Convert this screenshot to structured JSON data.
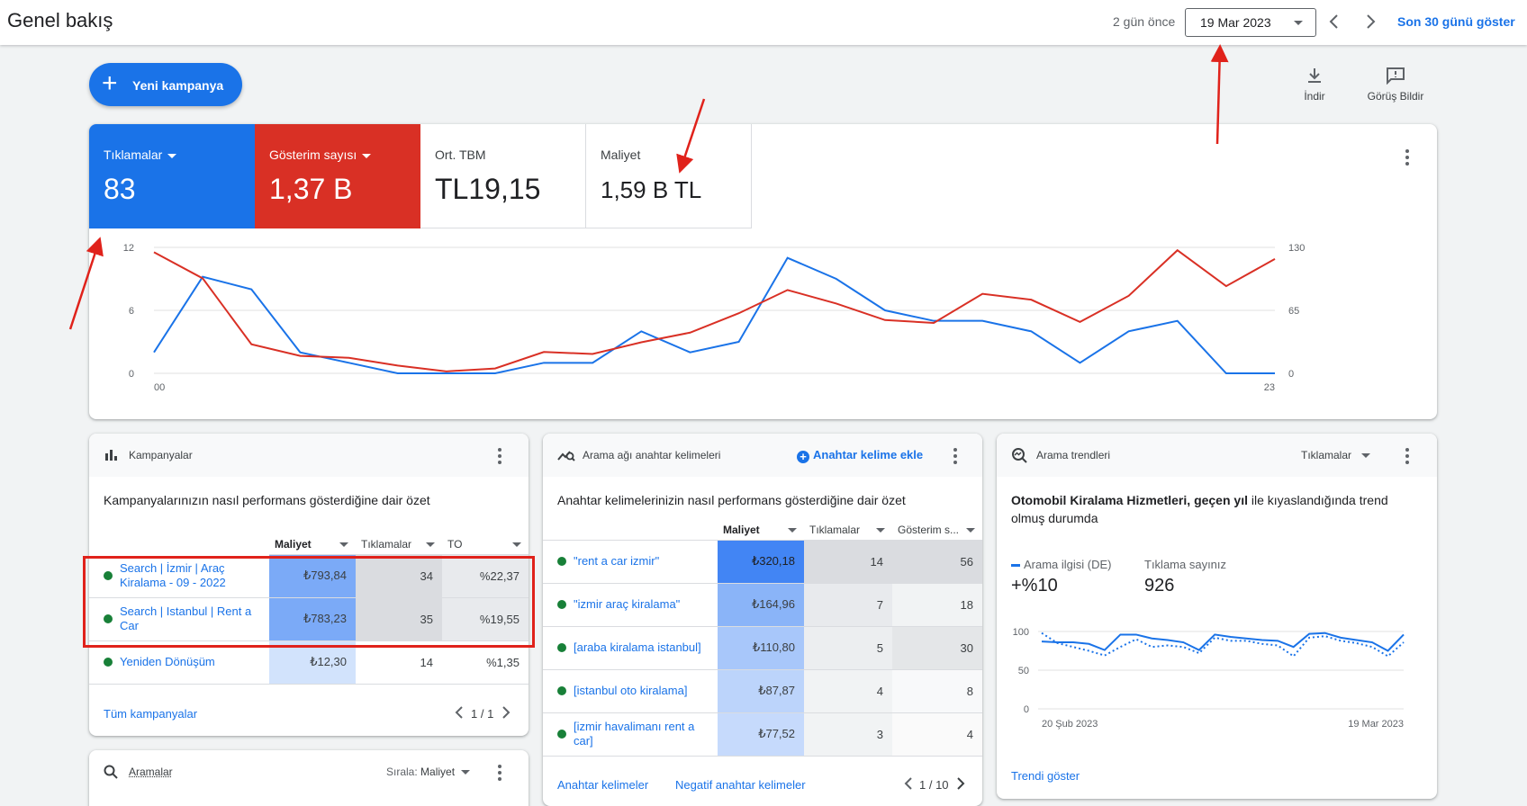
{
  "header": {
    "title": "Genel bakış",
    "ago": "2 gün önce",
    "date": "19 Mar 2023",
    "show_last": "Son 30 günü göster"
  },
  "actions": {
    "new_campaign": "Yeni kampanya",
    "download": "İndir",
    "feedback": "Görüş Bildir"
  },
  "metrics": [
    {
      "name": "Tıklamalar",
      "value": "83",
      "color": "#1a73e8"
    },
    {
      "name": "Gösterim sayısı",
      "value": "1,37 B",
      "color": "#d93025"
    },
    {
      "name": "Ort. TBM",
      "value": "TL19,15"
    },
    {
      "name": "Maliyet",
      "value": "1,59 B TL"
    }
  ],
  "chart_data": {
    "type": "line",
    "x": [
      0,
      1,
      2,
      3,
      4,
      5,
      6,
      7,
      8,
      9,
      10,
      11,
      12,
      13,
      14,
      15,
      16,
      17,
      18,
      19,
      20,
      21,
      22,
      23
    ],
    "x_tick_labels": [
      "00",
      "23"
    ],
    "y_left_ticks": [
      "12",
      "6",
      "0"
    ],
    "y_right_ticks": [
      "130",
      "65",
      "0"
    ],
    "ylim_left": [
      0,
      12
    ],
    "ylim_right": [
      0,
      130
    ],
    "grid": true,
    "series": [
      {
        "name": "Tıklamalar",
        "axis": "left",
        "color": "#1a73e8",
        "values": [
          2,
          9.2,
          8,
          2,
          1,
          0,
          0,
          0,
          1,
          1,
          4,
          2,
          3,
          11,
          9,
          6,
          5,
          5,
          4,
          1,
          4,
          5,
          0,
          0
        ]
      },
      {
        "name": "Gösterim sayısı",
        "axis": "right",
        "color": "#d93025",
        "values": [
          125,
          98,
          30,
          18,
          16,
          8,
          2,
          5,
          22,
          20,
          32,
          42,
          62,
          86,
          72,
          55,
          52,
          82,
          76,
          53,
          80,
          127,
          90,
          118
        ]
      }
    ]
  },
  "campaigns": {
    "title": "Kampanyalar",
    "summary": "Kampanyalarınızın nasıl performans gösterdiğine dair özet",
    "columns": [
      "Maliyet",
      "Tıklamalar",
      "TO"
    ],
    "rows": [
      {
        "name": "Search | İzmir | Araç Kiralama - 09 - 2022",
        "cost": "₺793,84",
        "clicks": "34",
        "ctr": "%22,37"
      },
      {
        "name": "Search | Istanbul | Rent a Car",
        "cost": "₺783,23",
        "clicks": "35",
        "ctr": "%19,55"
      },
      {
        "name": "Yeniden Dönüşüm",
        "cost": "₺12,30",
        "clicks": "14",
        "ctr": "%1,35"
      }
    ],
    "all_link": "Tüm kampanyalar",
    "pager": "1 / 1"
  },
  "keywords": {
    "title": "Arama ağı anahtar kelimeleri",
    "add_link": "Anahtar kelime ekle",
    "summary": "Anahtar kelimelerinizin nasıl performans gösterdiğine dair özet",
    "columns": [
      "Maliyet",
      "Tıklamalar",
      "Gösterim s..."
    ],
    "rows": [
      {
        "name": "\"rent a car izmir\"",
        "cost": "₺320,18",
        "clicks": "14",
        "impr": "56"
      },
      {
        "name": "\"izmir araç kiralama\"",
        "cost": "₺164,96",
        "clicks": "7",
        "impr": "18"
      },
      {
        "name": "[araba kiralama istanbul]",
        "cost": "₺110,80",
        "clicks": "5",
        "impr": "30"
      },
      {
        "name": "[istanbul oto kiralama]",
        "cost": "₺87,87",
        "clicks": "4",
        "impr": "8"
      },
      {
        "name": "[izmir havalimanı rent a car]",
        "cost": "₺77,52",
        "clicks": "3",
        "impr": "4"
      }
    ],
    "link1": "Anahtar kelimeler",
    "link2": "Negatif anahtar kelimeler",
    "pager": "1 / 10"
  },
  "trends": {
    "title": "Arama trendleri",
    "selector": "Tıklamalar",
    "desc_bold": "Otomobil Kiralama Hizmetleri",
    "desc_sep": ", ",
    "desc_bold2": "geçen yıl",
    "desc_rest": " ile kıyaslandığında trend olmuş durumda",
    "stat1_label": "Arama ilgisi (DE)",
    "stat1_value": "+%10",
    "stat2_label": "Tıklama sayınız",
    "stat2_value": "926",
    "y_ticks": [
      "100",
      "50",
      "0"
    ],
    "x_start": "20 Şub 2023",
    "x_end": "19 Mar 2023",
    "link": "Trendi göster",
    "solid": [
      87,
      86,
      86,
      84,
      76,
      96,
      96,
      91,
      89,
      86,
      76,
      96,
      93,
      91,
      89,
      88,
      80,
      97,
      98,
      92,
      89,
      86,
      75,
      96
    ],
    "dotted": [
      98,
      85,
      80,
      75,
      69,
      80,
      90,
      80,
      82,
      80,
      72,
      92,
      88,
      88,
      84,
      82,
      68,
      92,
      94,
      88,
      85,
      80,
      68,
      86
    ]
  },
  "searches": {
    "title": "Aramalar",
    "sort_label": "Sırala:",
    "sort_value": "Maliyet"
  }
}
